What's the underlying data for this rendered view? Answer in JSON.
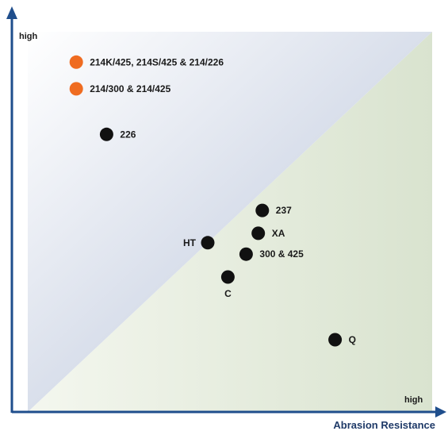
{
  "chart_data": {
    "type": "scatter",
    "title": "",
    "xlabel": "Abrasion Resistance",
    "ylabel": "",
    "x_high_label": "high",
    "y_high_label": "high",
    "xlim": [
      0,
      10
    ],
    "ylim": [
      0,
      10
    ],
    "grid": false,
    "colors": {
      "axis": "#1f4e8c",
      "upper_region_start": "#b3bfd7",
      "upper_region_end": "#ffffff",
      "lower_region_start": "#f4f7ef",
      "lower_region_end": "#d9e3cf",
      "point_default": "#111111",
      "point_highlight": "#ef6c21"
    },
    "points": [
      {
        "label": "214K/425, 214S/425 & 214/226",
        "x": 1.2,
        "y": 9.2,
        "color": "#ef6c21"
      },
      {
        "label": "214/300 & 214/425",
        "x": 1.2,
        "y": 8.5,
        "color": "#ef6c21"
      },
      {
        "label": "226",
        "x": 1.95,
        "y": 7.3,
        "color": "#111111"
      },
      {
        "label": "237",
        "x": 5.8,
        "y": 5.3,
        "color": "#111111"
      },
      {
        "label": "XA",
        "x": 5.7,
        "y": 4.7,
        "color": "#111111"
      },
      {
        "label": "HT",
        "x": 4.45,
        "y": 4.45,
        "color": "#111111"
      },
      {
        "label": "300 & 425",
        "x": 5.4,
        "y": 4.15,
        "color": "#111111"
      },
      {
        "label": "C",
        "x": 4.95,
        "y": 3.55,
        "color": "#111111"
      },
      {
        "label": "Q",
        "x": 7.6,
        "y": 1.9,
        "color": "#111111"
      }
    ]
  }
}
